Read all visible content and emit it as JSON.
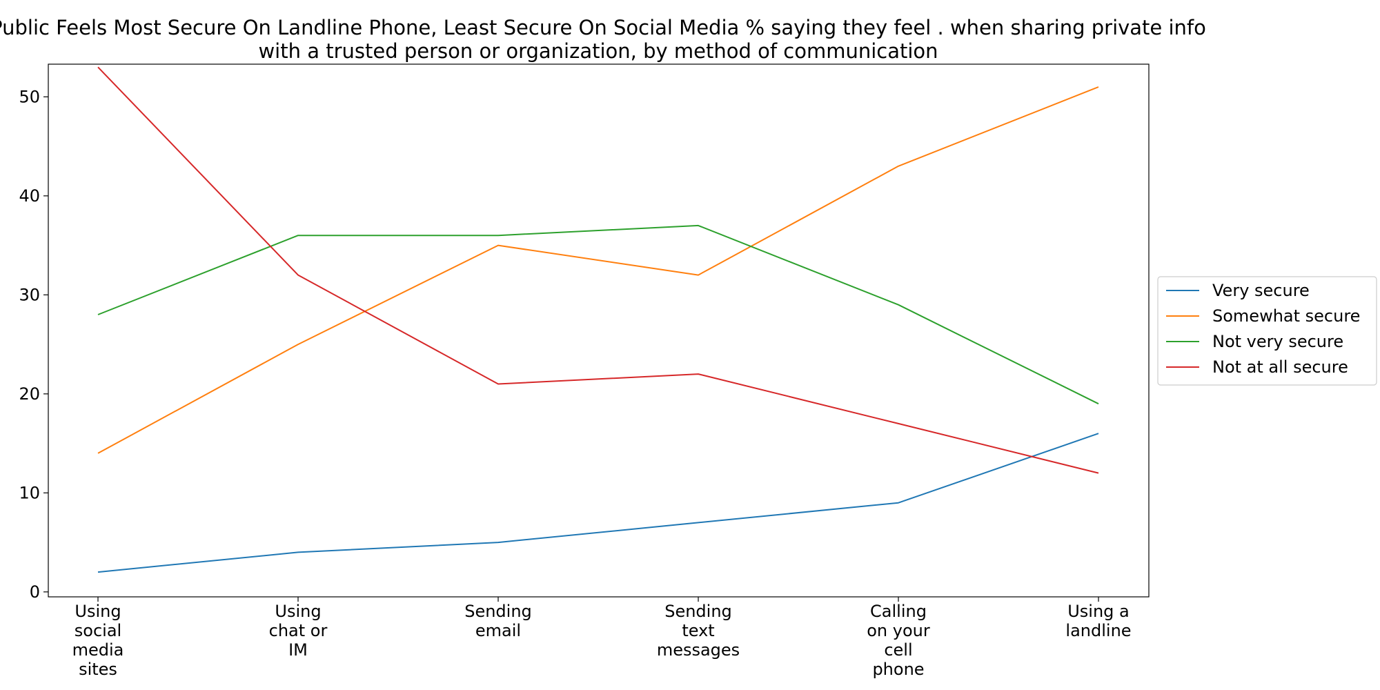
{
  "chart_data": {
    "type": "line",
    "title": "Public Feels Most Secure On Landline Phone, Least Secure On Social Media % saying they feel . when sharing private info with a trusted person or organization, by method of communication",
    "title_lines": [
      "Public Feels Most Secure On Landline Phone, Least Secure On Social Media % saying they feel . when sharing private info",
      "with a trusted person or organization, by method of communication"
    ],
    "xlabel": "",
    "ylabel": "",
    "categories": [
      "Using social media sites",
      "Using chat or IM",
      "Sending email",
      "Sending text messages",
      "Calling on your cell phone",
      "Using a landline"
    ],
    "category_lines": [
      [
        "Using",
        "social",
        "media",
        "sites"
      ],
      [
        "Using",
        "chat or",
        "IM"
      ],
      [
        "Sending",
        "email"
      ],
      [
        "Sending",
        "text",
        "messages"
      ],
      [
        "Calling",
        "on your",
        "cell",
        "phone"
      ],
      [
        "Using a",
        "landline"
      ]
    ],
    "ylim": [
      -0.5,
      53.3
    ],
    "yticks": [
      0,
      10,
      20,
      30,
      40,
      50
    ],
    "grid": false,
    "legend_position": "right",
    "series": [
      {
        "name": "Very secure",
        "color": "#1f77b4",
        "values": [
          2,
          4,
          5,
          7,
          9,
          16
        ]
      },
      {
        "name": "Somewhat secure",
        "color": "#ff7f0e",
        "values": [
          14,
          25,
          35,
          32,
          43,
          51
        ]
      },
      {
        "name": "Not very secure",
        "color": "#2ca02c",
        "values": [
          28,
          36,
          36,
          37,
          29,
          19
        ]
      },
      {
        "name": "Not at all secure",
        "color": "#d62728",
        "values": [
          53,
          32,
          21,
          22,
          17,
          12
        ]
      }
    ]
  }
}
